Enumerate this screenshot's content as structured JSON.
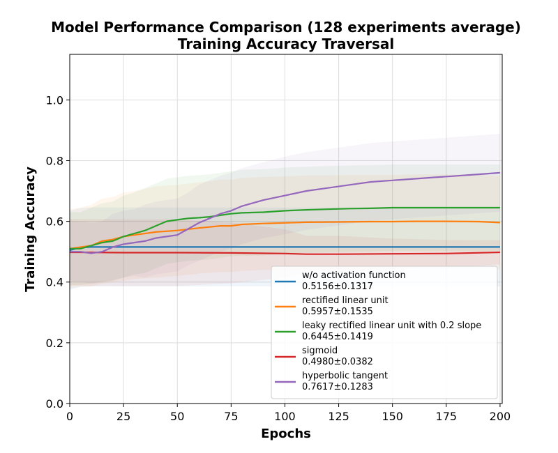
{
  "chart_data": {
    "type": "line",
    "title": "Model Performance Comparison (128 experiments average)",
    "subtitle": "Training Accuracy Traversal",
    "xlabel": "Epochs",
    "ylabel": "Training Accuracy",
    "xlim": [
      0,
      201
    ],
    "ylim": [
      0.0,
      1.15
    ],
    "xticks": [
      0,
      25,
      50,
      75,
      100,
      125,
      150,
      175,
      200
    ],
    "yticks": [
      0.0,
      0.2,
      0.4,
      0.6,
      0.8,
      1.0
    ],
    "grid": true,
    "legend_position": "lower-right",
    "series": [
      {
        "name": "w/o activation function",
        "value_label": "0.5156±0.1317",
        "color": "#1f77b4",
        "x": [
          0,
          5,
          10,
          25,
          50,
          75,
          100,
          125,
          150,
          175,
          200
        ],
        "y": [
          0.505,
          0.514,
          0.5156,
          0.5156,
          0.5156,
          0.5156,
          0.5156,
          0.5156,
          0.5156,
          0.5156,
          0.5156
        ],
        "band": [
          0.13,
          0.13,
          0.13,
          0.13,
          0.13,
          0.13,
          0.13,
          0.13,
          0.13,
          0.13,
          0.13
        ]
      },
      {
        "name": "rectified linear unit",
        "value_label": "0.5957±0.1535",
        "color": "#ff7f0e",
        "x": [
          0,
          5,
          10,
          15,
          20,
          25,
          30,
          40,
          50,
          60,
          70,
          75,
          80,
          90,
          100,
          110,
          125,
          140,
          150,
          160,
          175,
          190,
          200
        ],
        "y": [
          0.51,
          0.515,
          0.52,
          0.535,
          0.54,
          0.55,
          0.555,
          0.565,
          0.57,
          0.578,
          0.585,
          0.585,
          0.59,
          0.593,
          0.595,
          0.597,
          0.598,
          0.599,
          0.599,
          0.6,
          0.6,
          0.599,
          0.596
        ],
        "band": [
          0.13,
          0.13,
          0.135,
          0.14,
          0.14,
          0.145,
          0.145,
          0.15,
          0.15,
          0.15,
          0.152,
          0.152,
          0.153,
          0.153,
          0.153,
          0.154,
          0.154,
          0.154,
          0.154,
          0.154,
          0.154,
          0.154,
          0.154
        ]
      },
      {
        "name": "leaky rectified linear unit with 0.2 slope",
        "value_label": "0.6445±0.1419",
        "color": "#2ca02c",
        "x": [
          0,
          5,
          10,
          15,
          20,
          25,
          30,
          35,
          40,
          45,
          50,
          55,
          60,
          65,
          70,
          75,
          80,
          90,
          100,
          110,
          120,
          130,
          140,
          150,
          160,
          170,
          180,
          190,
          200
        ],
        "y": [
          0.51,
          0.51,
          0.52,
          0.53,
          0.535,
          0.55,
          0.56,
          0.57,
          0.585,
          0.6,
          0.605,
          0.61,
          0.612,
          0.615,
          0.62,
          0.625,
          0.628,
          0.63,
          0.635,
          0.638,
          0.64,
          0.642,
          0.643,
          0.645,
          0.645,
          0.645,
          0.645,
          0.645,
          0.645
        ],
        "band": [
          0.12,
          0.12,
          0.125,
          0.13,
          0.13,
          0.135,
          0.135,
          0.14,
          0.14,
          0.14,
          0.14,
          0.14,
          0.14,
          0.14,
          0.14,
          0.14,
          0.142,
          0.142,
          0.142,
          0.142,
          0.142,
          0.142,
          0.142,
          0.142,
          0.142,
          0.142,
          0.142,
          0.142,
          0.142
        ]
      },
      {
        "name": "sigmoid",
        "value_label": "0.4980±0.0382",
        "color": "#d62728",
        "x": [
          0,
          5,
          25,
          50,
          75,
          100,
          110,
          125,
          150,
          175,
          200
        ],
        "y": [
          0.498,
          0.498,
          0.497,
          0.497,
          0.496,
          0.494,
          0.492,
          0.492,
          0.493,
          0.494,
          0.498
        ],
        "band": [
          0.11,
          0.11,
          0.11,
          0.11,
          0.1,
          0.08,
          0.06,
          0.06,
          0.05,
          0.045,
          0.04
        ]
      },
      {
        "name": "hyperbolic tangent",
        "value_label": "0.7617±0.1283",
        "color": "#9467bd",
        "x": [
          0,
          5,
          10,
          15,
          20,
          25,
          30,
          35,
          40,
          45,
          50,
          55,
          60,
          65,
          70,
          75,
          80,
          90,
          100,
          110,
          120,
          130,
          140,
          150,
          160,
          170,
          180,
          190,
          200
        ],
        "y": [
          0.5,
          0.5,
          0.495,
          0.5,
          0.515,
          0.525,
          0.53,
          0.535,
          0.545,
          0.55,
          0.555,
          0.575,
          0.595,
          0.61,
          0.625,
          0.635,
          0.65,
          0.67,
          0.685,
          0.7,
          0.71,
          0.72,
          0.73,
          0.735,
          0.74,
          0.745,
          0.75,
          0.755,
          0.76
        ],
        "band": [
          0.1,
          0.1,
          0.1,
          0.1,
          0.11,
          0.11,
          0.11,
          0.12,
          0.12,
          0.12,
          0.12,
          0.12,
          0.125,
          0.125,
          0.125,
          0.125,
          0.125,
          0.125,
          0.128,
          0.128,
          0.128,
          0.128,
          0.128,
          0.128,
          0.128,
          0.128,
          0.128,
          0.128,
          0.128
        ]
      }
    ]
  }
}
